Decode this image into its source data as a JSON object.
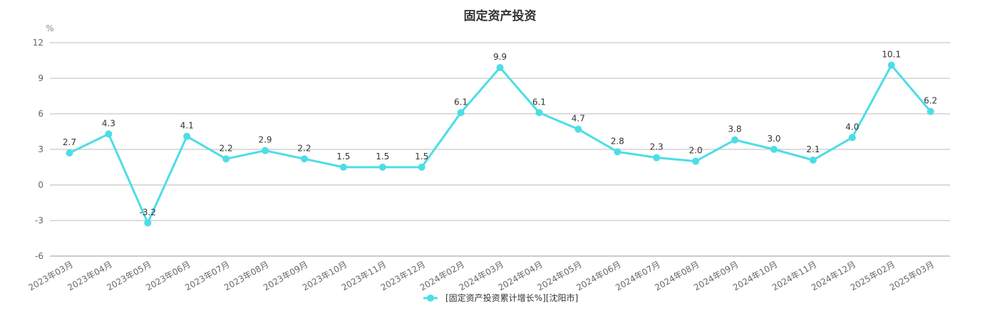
{
  "chart_data": {
    "type": "line",
    "title": "固定资产投资",
    "ylabel": "%",
    "xlabel": "",
    "ylim": [
      -6,
      12
    ],
    "yticks": [
      -6,
      -3,
      0,
      3,
      6,
      9,
      12
    ],
    "grid": true,
    "legend_position": "bottom-center",
    "categories": [
      "2023年03月",
      "2023年04月",
      "2023年05月",
      "2023年06月",
      "2023年07月",
      "2023年08月",
      "2023年09月",
      "2023年10月",
      "2023年11月",
      "2023年12月",
      "2024年02月",
      "2024年03月",
      "2024年04月",
      "2024年05月",
      "2024年06月",
      "2024年07月",
      "2024年08月",
      "2024年09月",
      "2024年10月",
      "2024年11月",
      "2024年12月",
      "2025年02月",
      "2025年03月"
    ],
    "series": [
      {
        "name": "[固定资产投资累计增长%][沈阳市]",
        "color": "#4ddde6",
        "values": [
          2.7,
          4.3,
          -3.2,
          4.1,
          2.2,
          2.9,
          2.2,
          1.5,
          1.5,
          1.5,
          6.1,
          9.9,
          6.1,
          4.7,
          2.8,
          2.3,
          2.0,
          3.8,
          3.0,
          2.1,
          4.0,
          10.1,
          6.2
        ]
      }
    ]
  }
}
